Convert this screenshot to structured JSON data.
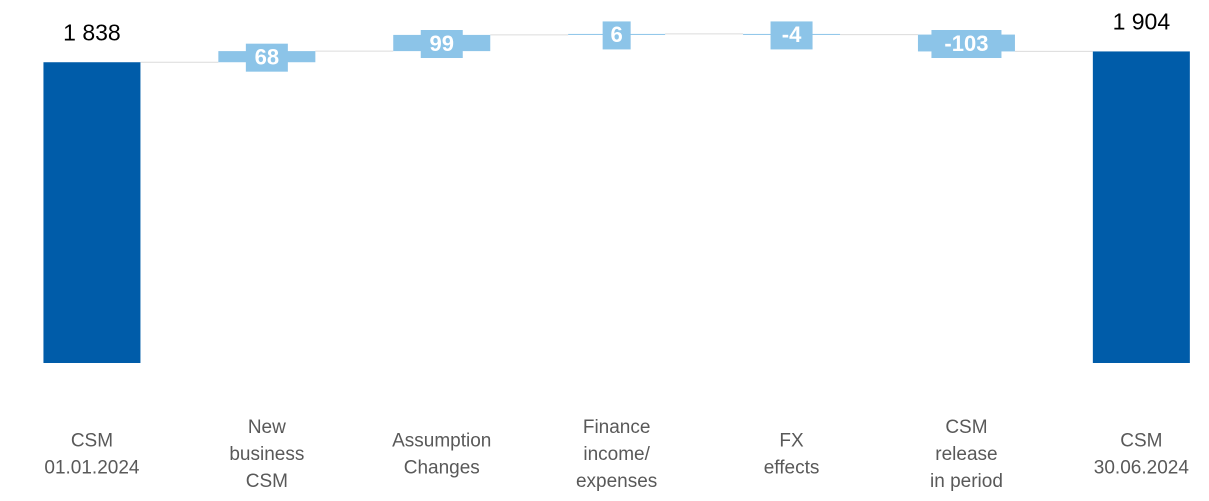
{
  "chart_data": {
    "type": "waterfall",
    "categories": [
      [
        "CSM",
        "01.01.2024"
      ],
      [
        "New",
        "business",
        "CSM"
      ],
      [
        "Assumption",
        "Changes"
      ],
      [
        "Finance",
        "income/",
        "expenses"
      ],
      [
        "FX",
        "effects"
      ],
      [
        "CSM",
        "release",
        "in period"
      ],
      [
        "CSM",
        "30.06.2024"
      ]
    ],
    "values": [
      1838,
      68,
      99,
      6,
      -4,
      -103,
      1904
    ],
    "value_labels": [
      "1 838",
      "68",
      "99",
      "6",
      "-4",
      "-103",
      "1 904"
    ],
    "total_color": "#005ca9",
    "delta_color": "#8cc4e8",
    "ylim": [
      0,
      2200
    ]
  }
}
